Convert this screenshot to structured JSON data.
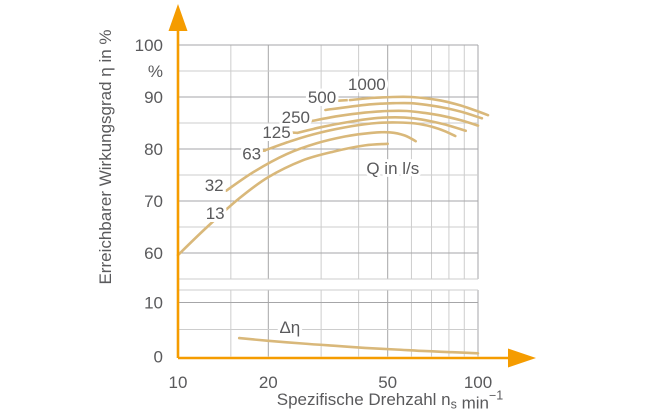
{
  "figure": {
    "background": "#ffffff",
    "colors": {
      "axis_orange": "#F59C00",
      "curve_tan": "#D9B87A",
      "grid_minor": "#CDCDCD",
      "grid_major": "#A6A6A8",
      "text": "#5A5A5C"
    },
    "y_axis_title": "Erreichbarer Wirkungsgrad η in %",
    "x_axis_title_parts": [
      {
        "text": "Spezifische Drehzahl n"
      },
      {
        "text": "s",
        "style": "sub"
      },
      {
        "text": " min"
      },
      {
        "text": "−1",
        "style": "sup"
      }
    ]
  },
  "chart_data": {
    "type": "line",
    "x_scale": "log",
    "x_range": [
      10,
      100
    ],
    "x_ticks": [
      {
        "value": 10,
        "label": "10"
      },
      {
        "value": 20,
        "label": "20"
      },
      {
        "value": 50,
        "label": "50"
      },
      {
        "value": 100,
        "label": "100"
      }
    ],
    "x_grid_major": [
      20,
      50,
      100
    ],
    "x_grid_minor": [
      15,
      30,
      40,
      60,
      70,
      80,
      90
    ],
    "xlabel": "Spezifische Drehzahl ns min-1",
    "legend_note": "curve parameter Q in l/s",
    "panels": [
      {
        "name": "efficiency",
        "ylabel": "Erreichbarer Wirkungsgrad η in %",
        "ylim": [
          55,
          100
        ],
        "grid": true,
        "y_ticks": [
          {
            "value": 100,
            "label": "100"
          },
          {
            "value": 95,
            "label": "%"
          },
          {
            "value": 90,
            "label": "90"
          },
          {
            "value": 80,
            "label": "80"
          },
          {
            "value": 70,
            "label": "70"
          },
          {
            "value": 60,
            "label": "60"
          }
        ],
        "y_grid_major": [
          60,
          70,
          80,
          90,
          100
        ],
        "y_grid_minor": [
          55,
          65,
          75,
          85,
          95
        ],
        "annotations": [
          {
            "text": "Q in l/s",
            "x": 52,
            "y": 76.3
          }
        ],
        "series": [
          {
            "name": "Q = 13 l/s",
            "label": "13",
            "label_x": 13.3,
            "label_y": 67.7,
            "points": [
              [
                10,
                59.6
              ],
              [
                12.5,
                65
              ],
              [
                16,
                70.5
              ],
              [
                20,
                74.6
              ],
              [
                26,
                77.8
              ],
              [
                33,
                79.5
              ],
              [
                42,
                80.7
              ],
              [
                50,
                81
              ]
            ]
          },
          {
            "name": "Q = 32 l/s",
            "label": "32",
            "label_x": 13.2,
            "label_y": 73.1,
            "points": [
              [
                14.5,
                72
              ],
              [
                18,
                75.7
              ],
              [
                23,
                79
              ],
              [
                29,
                81.1
              ],
              [
                36,
                82.4
              ],
              [
                44,
                83.1
              ],
              [
                51,
                83.2
              ],
              [
                57,
                82.6
              ],
              [
                62,
                81.5
              ]
            ]
          },
          {
            "name": "Q = 63 l/s",
            "label": "63",
            "label_x": 17.6,
            "label_y": 79.1,
            "leader": [
              [
                18.3,
                79.6
              ],
              [
                19.6,
                79.7
              ]
            ],
            "points": [
              [
                19.6,
                79.8
              ],
              [
                24,
                81.6
              ],
              [
                30,
                83.2
              ],
              [
                38,
                84.4
              ],
              [
                46,
                85
              ],
              [
                54,
                85.1
              ],
              [
                62,
                84.9
              ],
              [
                70,
                84.3
              ],
              [
                77,
                83.5
              ],
              [
                84,
                82.5
              ]
            ]
          },
          {
            "name": "Q = 125 l/s",
            "label": "125",
            "label_x": 21.3,
            "label_y": 83.3,
            "leader": [
              [
                23.3,
                83.2
              ],
              [
                25,
                83.1
              ]
            ],
            "points": [
              [
                25,
                83.1
              ],
              [
                30,
                84.2
              ],
              [
                37,
                85.2
              ],
              [
                45,
                85.9
              ],
              [
                53,
                86.1
              ],
              [
                61,
                85.9
              ],
              [
                70,
                85.3
              ],
              [
                80,
                84.5
              ],
              [
                91,
                83.5
              ]
            ]
          },
          {
            "name": "Q = 250 l/s",
            "label": "250",
            "label_x": 24.7,
            "label_y": 86.2,
            "leader": [
              [
                26.3,
                85.8
              ],
              [
                28,
                85.4
              ]
            ],
            "points": [
              [
                28,
                85.4
              ],
              [
                34,
                86.3
              ],
              [
                42,
                87
              ],
              [
                50,
                87.3
              ],
              [
                58,
                87.3
              ],
              [
                67,
                86.9
              ],
              [
                77,
                86.3
              ],
              [
                88,
                85.5
              ],
              [
                100,
                84.5
              ]
            ]
          },
          {
            "name": "Q = 500 l/s",
            "label": "500",
            "label_x": 30.2,
            "label_y": 90.0,
            "leader": [
              [
                34.2,
                89.3
              ],
              [
                36.8,
                89.4
              ]
            ],
            "points": [
              [
                31,
                87.5
              ],
              [
                37,
                88.1
              ],
              [
                44,
                88.6
              ],
              [
                52,
                88.8
              ],
              [
                60,
                88.8
              ],
              [
                69,
                88.4
              ],
              [
                79,
                87.8
              ],
              [
                90,
                87
              ],
              [
                103,
                85.9
              ]
            ]
          },
          {
            "name": "Q = 1000 l/s",
            "label": "1000",
            "label_x": 42.6,
            "label_y": 92.5,
            "points": [
              [
                37.4,
                89.4
              ],
              [
                44,
                89.8
              ],
              [
                52,
                90
              ],
              [
                60,
                90
              ],
              [
                68,
                89.7
              ],
              [
                77,
                89.2
              ],
              [
                87,
                88.4
              ],
              [
                97,
                87.5
              ],
              [
                108,
                86.5
              ]
            ]
          }
        ]
      },
      {
        "name": "efficiency-difference",
        "ylabel": "Δη",
        "ylim": [
          0,
          12.3
        ],
        "grid": true,
        "y_ticks": [
          {
            "value": 10,
            "label": "10"
          },
          {
            "value": 0,
            "label": "0"
          }
        ],
        "y_grid_major": [
          10
        ],
        "y_grid_minor": [
          5
        ],
        "annotations": [
          {
            "text": "Δη",
            "x": 23.6,
            "y": 5.5
          }
        ],
        "series": [
          {
            "name": "Δη",
            "label": "",
            "points": [
              [
                16,
                3.4
              ],
              [
                20,
                2.9
              ],
              [
                26,
                2.4
              ],
              [
                33,
                2.0
              ],
              [
                42,
                1.6
              ],
              [
                53,
                1.3
              ],
              [
                67,
                1.0
              ],
              [
                82,
                0.8
              ],
              [
                100,
                0.6
              ]
            ]
          }
        ]
      }
    ]
  }
}
